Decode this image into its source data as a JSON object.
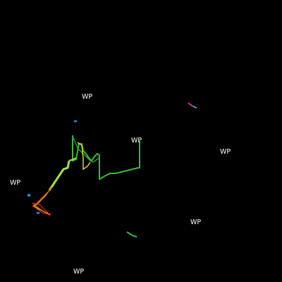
{
  "map": {
    "background": "#000000",
    "waypoint_label": "WP",
    "waypoints": [
      {
        "label": "WP"
      },
      {
        "label": "WP"
      },
      {
        "label": "WP"
      },
      {
        "label": "WP"
      },
      {
        "label": "WP"
      },
      {
        "label": "WP"
      }
    ],
    "track_colors": {
      "green": "#3cb83c",
      "lime": "#a8e23a",
      "yellow": "#d8d820",
      "orange": "#e8a020",
      "red": "#e03a1a",
      "blue": "#2a8ad0",
      "magenta": "#d02a8a"
    }
  }
}
